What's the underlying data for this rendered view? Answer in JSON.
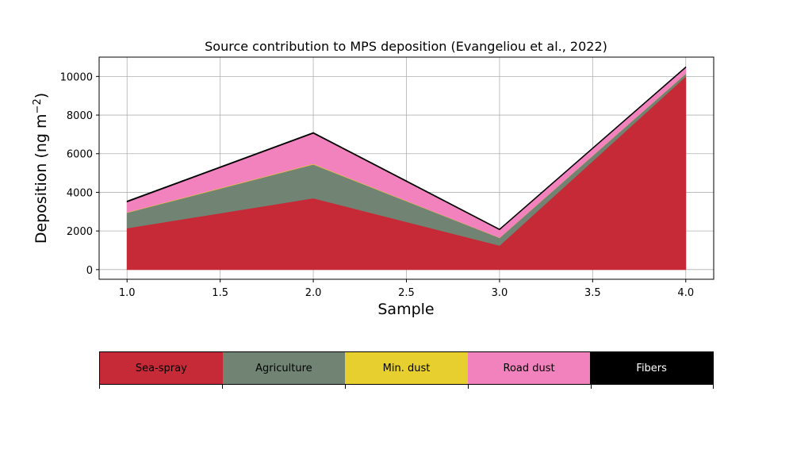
{
  "chart_data": {
    "type": "area",
    "stacked": true,
    "title": "Source contribution to MPS deposition (Evangeliou et al., 2022)",
    "xlabel": "Sample",
    "ylabel": "Deposition (ng m",
    "ylabel_exp": "−2",
    "ylabel_close": ")",
    "x": [
      1.0,
      2.0,
      3.0,
      4.0
    ],
    "xlim": [
      0.85,
      4.15
    ],
    "ylim": [
      -500,
      11000
    ],
    "xticks": [
      1.0,
      1.5,
      2.0,
      2.5,
      3.0,
      3.5,
      4.0
    ],
    "xtick_labels": [
      "1.0",
      "1.5",
      "2.0",
      "2.5",
      "3.0",
      "3.5",
      "4.0"
    ],
    "yticks": [
      0,
      2000,
      4000,
      6000,
      8000,
      10000
    ],
    "ytick_labels": [
      "0",
      "2000",
      "4000",
      "6000",
      "8000",
      "10000"
    ],
    "grid": true,
    "series": [
      {
        "name": "Sea-spray",
        "color": "#c62a36",
        "values": [
          2150,
          3700,
          1250,
          10000
        ]
      },
      {
        "name": "Agriculture",
        "color": "#718474",
        "values": [
          800,
          1750,
          400,
          150
        ]
      },
      {
        "name": "Min. dust",
        "color": "#e6cf2e",
        "values": [
          20,
          30,
          10,
          10
        ]
      },
      {
        "name": "Road dust",
        "color": "#f282bd",
        "values": [
          530,
          1570,
          400,
          300
        ]
      },
      {
        "name": "Fibers",
        "color": "#000000",
        "values": [
          50,
          50,
          40,
          40
        ]
      }
    ]
  }
}
